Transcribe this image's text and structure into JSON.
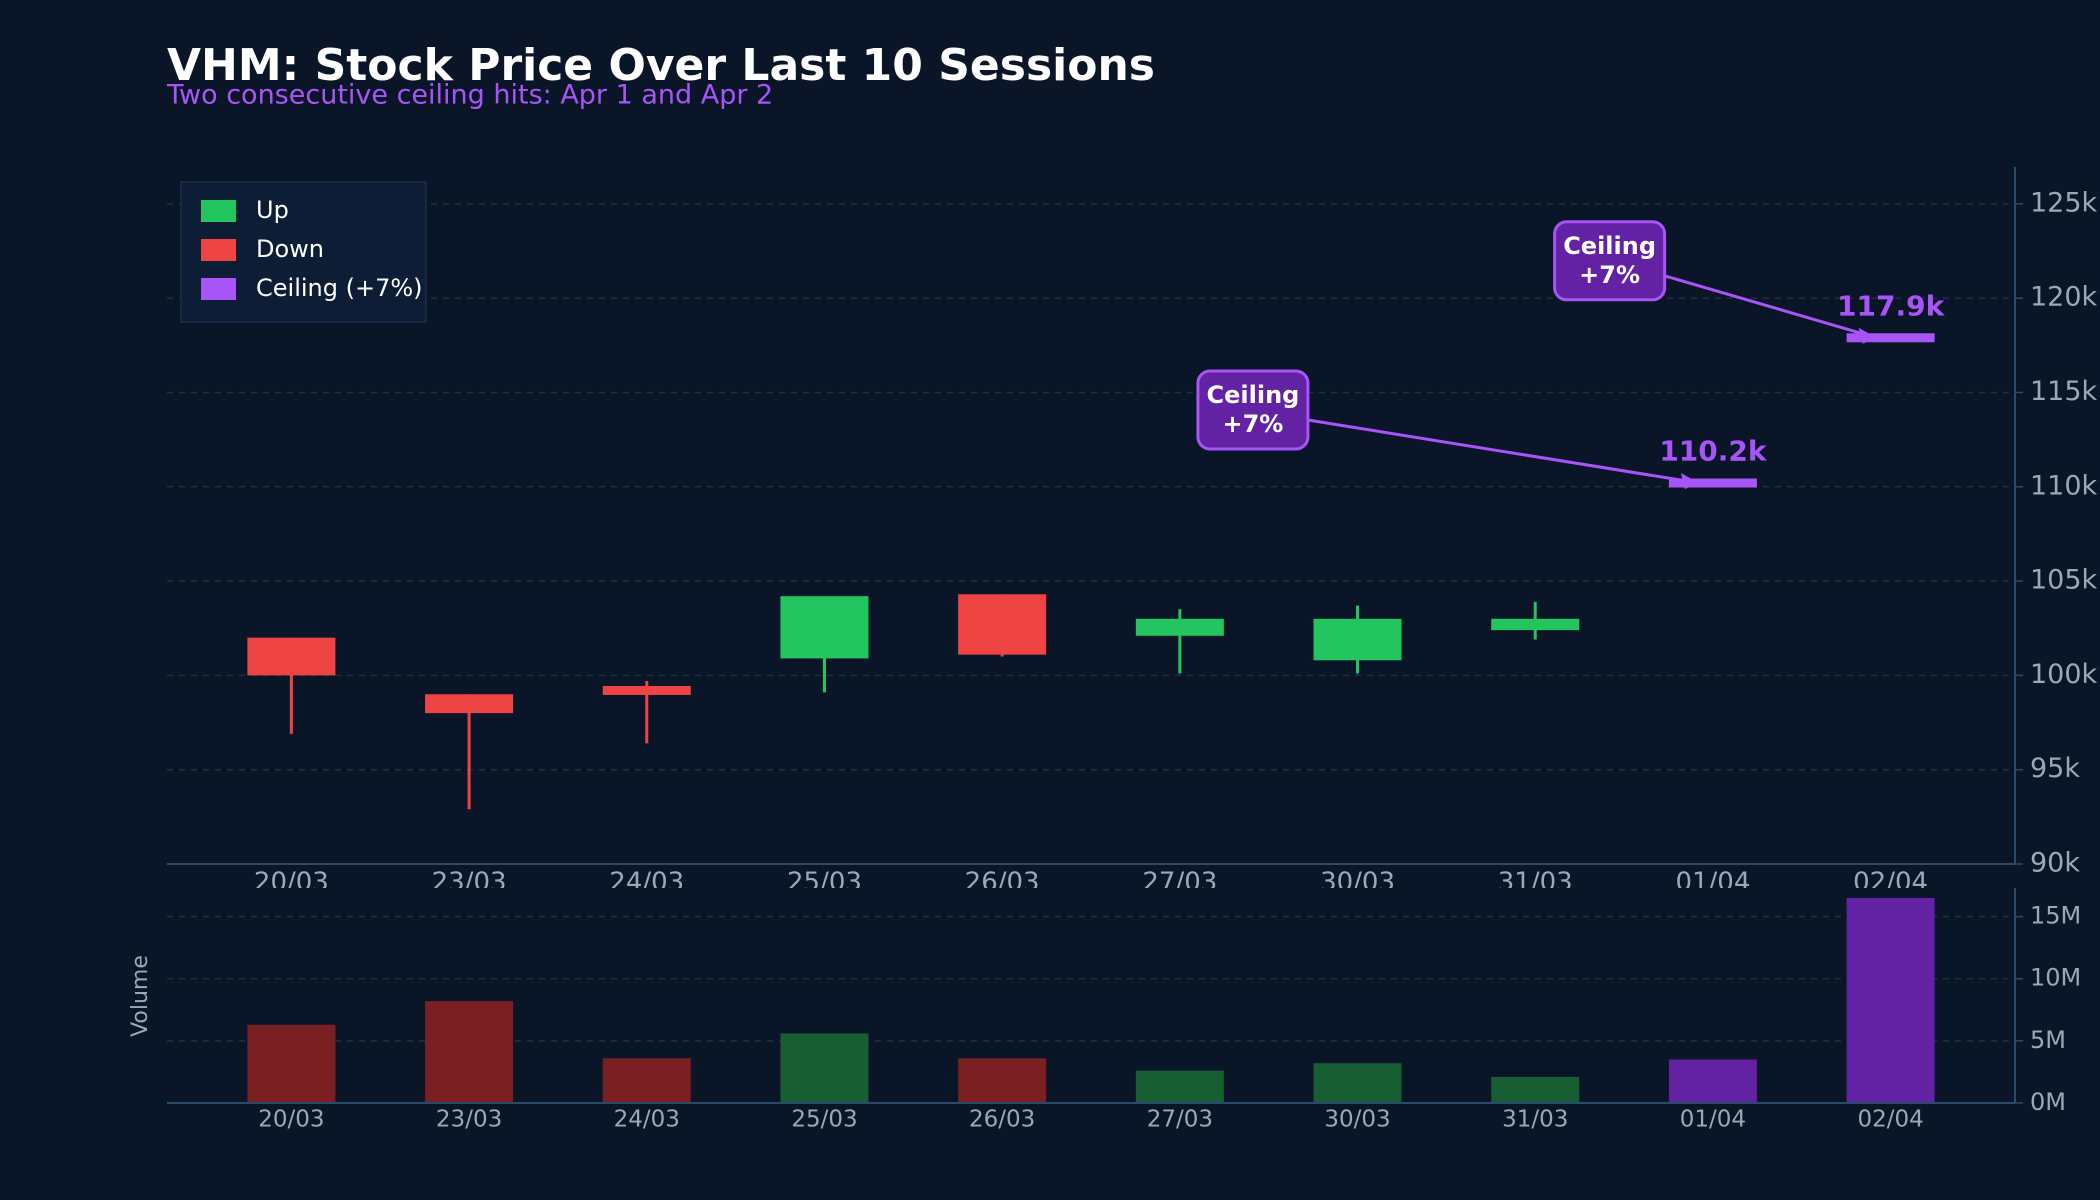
{
  "chart_data": {
    "type": "candlestick",
    "title": "VHM: Stock Price Over Last 10 Sessions",
    "subtitle": "Two consecutive ceiling hits: Apr 1 and Apr 2",
    "categories": [
      "20/03",
      "23/03",
      "24/03",
      "25/03",
      "26/03",
      "27/03",
      "30/03",
      "31/03",
      "01/04",
      "02/04"
    ],
    "open": [
      102000,
      99000,
      99400,
      100900,
      104300,
      102100,
      100800,
      102400,
      110200,
      117900
    ],
    "high": [
      102000,
      99000,
      99700,
      104200,
      104300,
      103500,
      103700,
      103900,
      110200,
      117900
    ],
    "low": [
      96900,
      92900,
      96400,
      99100,
      101000,
      100100,
      100100,
      101900,
      110200,
      117900
    ],
    "close": [
      100000,
      98000,
      99000,
      104200,
      101100,
      103000,
      103000,
      103000,
      110200,
      117900
    ],
    "value_labels": [
      null,
      null,
      null,
      null,
      null,
      null,
      null,
      null,
      "110.2k",
      "117.9k"
    ],
    "ylim": [
      90000,
      126000
    ],
    "yticks": [
      {
        "value": 90000,
        "label": "90k"
      },
      {
        "value": 95000,
        "label": "95k"
      },
      {
        "value": 100000,
        "label": "100k"
      },
      {
        "value": 105000,
        "label": "105k"
      },
      {
        "value": 110000,
        "label": "110k"
      },
      {
        "value": 115000,
        "label": "115k"
      },
      {
        "value": 120000,
        "label": "120k"
      },
      {
        "value": 125000,
        "label": "125k"
      }
    ],
    "legend": [
      {
        "name": "Up",
        "color": "#22c55e",
        "volume_color": "#175e33"
      },
      {
        "name": "Down",
        "color": "#ef4444",
        "volume_color": "#7a1f22"
      },
      {
        "name": "Ceiling (+7%)",
        "color": "#a855f7",
        "volume_color": "#6321a4"
      }
    ],
    "legend_position": "upper left",
    "grid": true,
    "annotations": [
      {
        "lines": [
          "Ceiling",
          "+7%"
        ],
        "category": "01/04"
      },
      {
        "lines": [
          "Ceiling",
          "+7%"
        ],
        "category": "02/04"
      }
    ],
    "volume": {
      "label": "Volume",
      "values": [
        6300000,
        8200000,
        3600000,
        5600000,
        3600000,
        2600000,
        3200000,
        2100000,
        3500000,
        16500000
      ],
      "ylim": [
        0,
        17300000
      ],
      "yticks": [
        {
          "value": 0,
          "label": "0M"
        },
        {
          "value": 5000000,
          "label": "5M"
        },
        {
          "value": 10000000,
          "label": "10M"
        },
        {
          "value": 15000000,
          "label": "15M"
        }
      ]
    }
  }
}
